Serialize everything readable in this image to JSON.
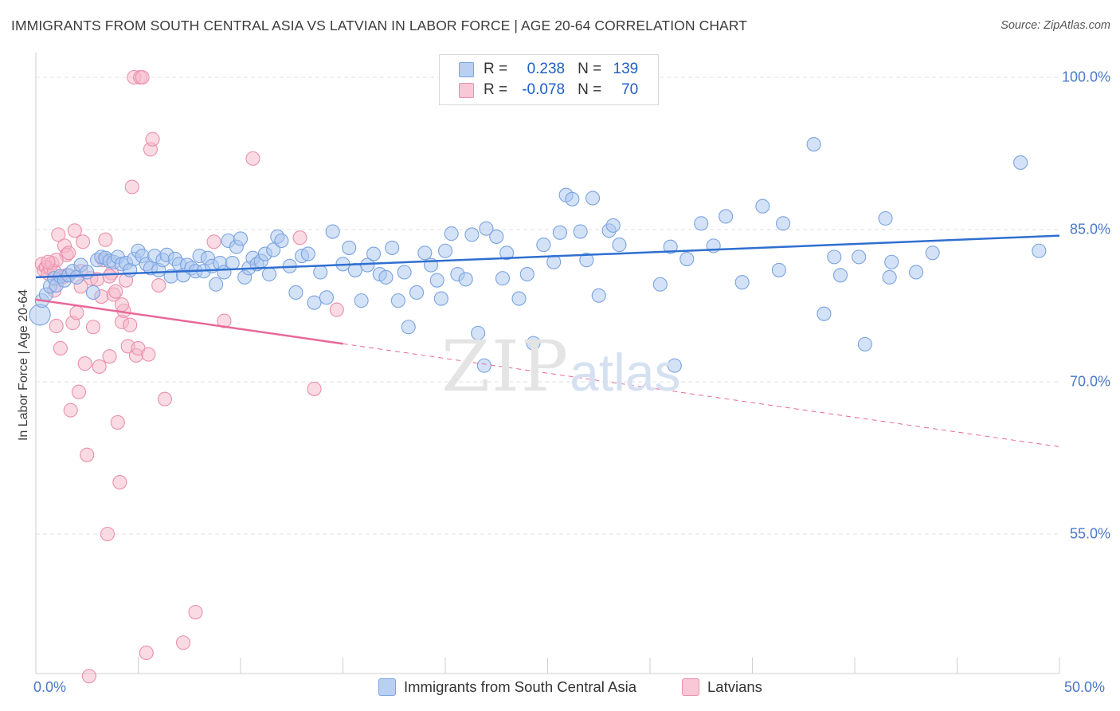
{
  "title": "IMMIGRANTS FROM SOUTH CENTRAL ASIA VS LATVIAN IN LABOR FORCE | AGE 20-64 CORRELATION CHART",
  "source": "Source: ZipAtlas.com",
  "watermark": {
    "zip": "ZIP",
    "atlas": "atlas"
  },
  "colors": {
    "blue_fill": "#a9c6ef",
    "blue_stroke": "#7aa3e0",
    "blue_line": "#2f6fd0",
    "pink_fill": "#f5b8c9",
    "pink_stroke": "#eb8fac",
    "pink_line": "#e8689a",
    "grid": "#e2e2e2",
    "tick_text": "#4a78c8"
  },
  "legend": {
    "r_label": "R =",
    "n_label": "N =",
    "rows": [
      {
        "r": "0.238",
        "n": "139"
      },
      {
        "r": "-0.078",
        "n": "70"
      }
    ]
  },
  "chart_data": {
    "type": "scatter",
    "ylabel": "In Labor Force | Age 20-64",
    "xlim": [
      0,
      50
    ],
    "ylim": [
      40,
      102
    ],
    "x_tick_labels": [
      "0.0%",
      "50.0%"
    ],
    "y_ticks": [
      {
        "value": 100,
        "label": "100.0%"
      },
      {
        "value": 85,
        "label": "85.0%"
      },
      {
        "value": 70,
        "label": "70.0%"
      },
      {
        "value": 55,
        "label": "55.0%"
      }
    ],
    "grid": "horizontal dashed",
    "legend_position": "top-center",
    "series": [
      {
        "name": "Immigrants from South Central Asia",
        "color": "#a9c6ef",
        "trend": {
          "x0": 0,
          "y0": 80.3,
          "x1": 50,
          "y1": 84.4,
          "dashed_from": null
        },
        "points": [
          [
            0.2,
            76.6
          ],
          [
            0.3,
            78.0
          ],
          [
            0.5,
            78.6
          ],
          [
            0.7,
            79.4
          ],
          [
            0.9,
            80.2
          ],
          [
            1.0,
            79.5
          ],
          [
            1.2,
            80.4
          ],
          [
            1.4,
            80.0
          ],
          [
            1.6,
            80.5
          ],
          [
            1.8,
            80.9
          ],
          [
            2.0,
            80.3
          ],
          [
            2.2,
            81.5
          ],
          [
            2.5,
            80.8
          ],
          [
            2.8,
            78.8
          ],
          [
            3.0,
            82.0
          ],
          [
            3.2,
            82.3
          ],
          [
            3.4,
            82.2
          ],
          [
            3.6,
            81.9
          ],
          [
            3.8,
            81.8
          ],
          [
            4.0,
            82.3
          ],
          [
            4.2,
            81.6
          ],
          [
            4.4,
            81.7
          ],
          [
            4.6,
            81.0
          ],
          [
            4.8,
            82.1
          ],
          [
            5.0,
            82.9
          ],
          [
            5.2,
            82.4
          ],
          [
            5.4,
            81.6
          ],
          [
            5.6,
            81.2
          ],
          [
            5.8,
            82.4
          ],
          [
            6.0,
            81.0
          ],
          [
            6.2,
            82.0
          ],
          [
            6.4,
            82.5
          ],
          [
            6.6,
            80.4
          ],
          [
            6.8,
            82.1
          ],
          [
            7.0,
            81.6
          ],
          [
            7.2,
            80.5
          ],
          [
            7.4,
            81.5
          ],
          [
            7.6,
            81.2
          ],
          [
            7.8,
            80.9
          ],
          [
            8.0,
            82.4
          ],
          [
            8.2,
            80.9
          ],
          [
            8.4,
            82.2
          ],
          [
            8.6,
            81.4
          ],
          [
            8.8,
            79.6
          ],
          [
            9.0,
            81.7
          ],
          [
            9.2,
            80.8
          ],
          [
            9.4,
            83.9
          ],
          [
            9.6,
            81.7
          ],
          [
            9.8,
            83.3
          ],
          [
            10.0,
            84.1
          ],
          [
            10.2,
            80.3
          ],
          [
            10.4,
            81.2
          ],
          [
            10.6,
            82.2
          ],
          [
            10.8,
            81.6
          ],
          [
            11.0,
            81.9
          ],
          [
            11.2,
            82.6
          ],
          [
            11.4,
            80.6
          ],
          [
            11.6,
            83.0
          ],
          [
            11.8,
            84.3
          ],
          [
            12.0,
            83.9
          ],
          [
            12.4,
            81.4
          ],
          [
            12.7,
            78.8
          ],
          [
            13.0,
            82.4
          ],
          [
            13.3,
            82.6
          ],
          [
            13.6,
            77.8
          ],
          [
            13.9,
            80.8
          ],
          [
            14.2,
            78.3
          ],
          [
            14.5,
            84.8
          ],
          [
            15.0,
            81.6
          ],
          [
            15.3,
            83.2
          ],
          [
            15.6,
            81.0
          ],
          [
            15.9,
            78.0
          ],
          [
            16.2,
            81.5
          ],
          [
            16.5,
            82.6
          ],
          [
            16.8,
            80.6
          ],
          [
            17.1,
            80.3
          ],
          [
            17.4,
            83.2
          ],
          [
            17.7,
            78.0
          ],
          [
            18.0,
            80.8
          ],
          [
            18.2,
            75.4
          ],
          [
            18.6,
            78.8
          ],
          [
            19.0,
            82.7
          ],
          [
            19.3,
            81.5
          ],
          [
            19.6,
            80.0
          ],
          [
            19.8,
            78.2
          ],
          [
            20.0,
            82.9
          ],
          [
            20.3,
            84.6
          ],
          [
            20.6,
            80.6
          ],
          [
            21.0,
            80.1
          ],
          [
            21.3,
            84.5
          ],
          [
            21.6,
            74.8
          ],
          [
            21.9,
            71.6
          ],
          [
            22.0,
            85.1
          ],
          [
            22.5,
            84.3
          ],
          [
            22.8,
            80.2
          ],
          [
            23.0,
            82.7
          ],
          [
            23.6,
            78.2
          ],
          [
            24.0,
            80.6
          ],
          [
            24.3,
            73.8
          ],
          [
            24.8,
            83.5
          ],
          [
            25.3,
            81.8
          ],
          [
            25.6,
            84.7
          ],
          [
            25.9,
            88.4
          ],
          [
            26.2,
            88.0
          ],
          [
            26.6,
            84.8
          ],
          [
            26.9,
            82.0
          ],
          [
            27.2,
            88.1
          ],
          [
            27.5,
            78.5
          ],
          [
            28.0,
            84.9
          ],
          [
            28.2,
            85.4
          ],
          [
            28.5,
            83.5
          ],
          [
            29.6,
            100.0
          ],
          [
            30.5,
            79.6
          ],
          [
            31.0,
            83.3
          ],
          [
            31.2,
            71.6
          ],
          [
            31.8,
            82.1
          ],
          [
            32.5,
            85.6
          ],
          [
            33.1,
            83.4
          ],
          [
            33.7,
            86.3
          ],
          [
            34.5,
            79.8
          ],
          [
            35.5,
            87.3
          ],
          [
            36.3,
            81.0
          ],
          [
            36.5,
            85.6
          ],
          [
            38.0,
            93.4
          ],
          [
            38.5,
            76.7
          ],
          [
            39.0,
            82.3
          ],
          [
            39.3,
            80.5
          ],
          [
            40.2,
            82.3
          ],
          [
            40.5,
            73.7
          ],
          [
            41.5,
            86.1
          ],
          [
            41.7,
            80.3
          ],
          [
            41.8,
            81.8
          ],
          [
            43.0,
            80.8
          ],
          [
            43.8,
            82.7
          ],
          [
            48.1,
            91.6
          ],
          [
            49.0,
            82.9
          ]
        ]
      },
      {
        "name": "Latvians",
        "color": "#f5b8c9",
        "trend": {
          "x0": 0,
          "y0": 78.1,
          "x1": 50,
          "y1": 63.6,
          "dashed_from": 15
        },
        "points": [
          [
            0.3,
            81.6
          ],
          [
            0.4,
            81.0
          ],
          [
            0.5,
            81.3
          ],
          [
            0.6,
            80.7
          ],
          [
            0.7,
            81.2
          ],
          [
            0.8,
            81.7
          ],
          [
            0.9,
            80.9
          ],
          [
            1.0,
            75.5
          ],
          [
            1.1,
            84.5
          ],
          [
            1.2,
            73.3
          ],
          [
            1.3,
            80.3
          ],
          [
            1.4,
            83.4
          ],
          [
            1.5,
            82.5
          ],
          [
            1.6,
            82.7
          ],
          [
            1.7,
            67.2
          ],
          [
            1.8,
            75.8
          ],
          [
            1.9,
            84.9
          ],
          [
            2.0,
            76.8
          ],
          [
            2.1,
            69.0
          ],
          [
            2.2,
            80.9
          ],
          [
            2.3,
            83.8
          ],
          [
            2.4,
            71.8
          ],
          [
            2.5,
            62.8
          ],
          [
            2.6,
            41.0
          ],
          [
            2.7,
            80.2
          ],
          [
            2.8,
            75.4
          ],
          [
            3.0,
            80.1
          ],
          [
            3.1,
            71.5
          ],
          [
            3.2,
            78.4
          ],
          [
            3.3,
            82.0
          ],
          [
            3.4,
            84.0
          ],
          [
            3.5,
            55.0
          ],
          [
            3.6,
            72.5
          ],
          [
            3.7,
            80.7
          ],
          [
            3.8,
            78.6
          ],
          [
            3.9,
            78.9
          ],
          [
            4.0,
            66.0
          ],
          [
            4.1,
            60.1
          ],
          [
            4.2,
            75.9
          ],
          [
            4.3,
            77.0
          ],
          [
            4.4,
            80.0
          ],
          [
            4.5,
            73.5
          ],
          [
            4.6,
            75.6
          ],
          [
            4.7,
            89.2
          ],
          [
            4.8,
            100.0
          ],
          [
            4.9,
            72.6
          ],
          [
            5.0,
            73.3
          ],
          [
            5.1,
            100.0
          ],
          [
            5.2,
            100.0
          ],
          [
            5.4,
            43.3
          ],
          [
            5.5,
            72.7
          ],
          [
            5.6,
            92.9
          ],
          [
            5.7,
            93.9
          ],
          [
            6.0,
            79.5
          ],
          [
            6.3,
            68.3
          ],
          [
            7.2,
            44.3
          ],
          [
            7.8,
            47.3
          ],
          [
            8.7,
            83.8
          ],
          [
            9.2,
            76.0
          ],
          [
            10.6,
            92.0
          ],
          [
            12.9,
            84.2
          ],
          [
            13.6,
            69.3
          ],
          [
            14.7,
            77.1
          ],
          [
            1.0,
            82.0
          ],
          [
            1.5,
            80.5
          ],
          [
            2.2,
            79.4
          ],
          [
            3.6,
            80.4
          ],
          [
            4.2,
            77.6
          ],
          [
            0.6,
            81.8
          ],
          [
            0.9,
            79.0
          ]
        ]
      }
    ]
  }
}
